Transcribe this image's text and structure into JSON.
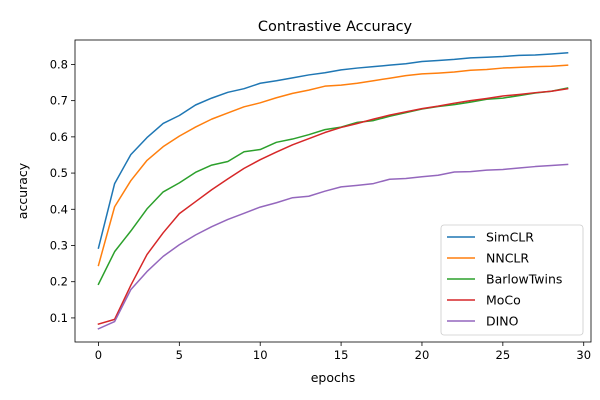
{
  "chart_data": {
    "type": "line",
    "title": "Contrastive Accuracy",
    "xlabel": "epochs",
    "ylabel": "accuracy",
    "xlim": [
      -1.45,
      30.45
    ],
    "ylim": [
      0.0335,
      0.8675
    ],
    "xticks": [
      0,
      5,
      10,
      15,
      20,
      25,
      30
    ],
    "yticks": [
      0.1,
      0.2,
      0.3,
      0.4,
      0.5,
      0.6,
      0.7,
      0.8
    ],
    "grid": false,
    "legend_position": "lower-right",
    "x": [
      0,
      1,
      2,
      3,
      4,
      5,
      6,
      7,
      8,
      9,
      10,
      11,
      12,
      13,
      14,
      15,
      16,
      17,
      18,
      19,
      20,
      21,
      22,
      23,
      24,
      25,
      26,
      27,
      28,
      29
    ],
    "series": [
      {
        "name": "SimCLR",
        "color": "#1f77b4",
        "values": [
          0.293,
          0.471,
          0.551,
          0.598,
          0.637,
          0.659,
          0.688,
          0.707,
          0.723,
          0.733,
          0.748,
          0.755,
          0.763,
          0.771,
          0.777,
          0.785,
          0.79,
          0.794,
          0.798,
          0.802,
          0.808,
          0.811,
          0.814,
          0.818,
          0.82,
          0.822,
          0.825,
          0.826,
          0.829,
          0.832
        ]
      },
      {
        "name": "NNCLR",
        "color": "#ff7f0e",
        "values": [
          0.245,
          0.407,
          0.479,
          0.535,
          0.573,
          0.602,
          0.627,
          0.649,
          0.666,
          0.683,
          0.694,
          0.708,
          0.72,
          0.729,
          0.74,
          0.743,
          0.748,
          0.755,
          0.762,
          0.769,
          0.774,
          0.776,
          0.779,
          0.784,
          0.786,
          0.79,
          0.792,
          0.794,
          0.795,
          0.798
        ]
      },
      {
        "name": "BarlowTwins",
        "color": "#2ca02c",
        "values": [
          0.193,
          0.283,
          0.34,
          0.401,
          0.448,
          0.473,
          0.502,
          0.522,
          0.532,
          0.559,
          0.565,
          0.585,
          0.594,
          0.606,
          0.62,
          0.627,
          0.64,
          0.645,
          0.657,
          0.667,
          0.677,
          0.684,
          0.689,
          0.696,
          0.704,
          0.707,
          0.714,
          0.721,
          0.726,
          0.735
        ]
      },
      {
        "name": "MoCo",
        "color": "#d62728",
        "values": [
          0.083,
          0.096,
          0.19,
          0.275,
          0.335,
          0.388,
          0.421,
          0.454,
          0.484,
          0.513,
          0.537,
          0.558,
          0.578,
          0.595,
          0.612,
          0.626,
          0.637,
          0.649,
          0.66,
          0.669,
          0.678,
          0.685,
          0.693,
          0.7,
          0.706,
          0.713,
          0.717,
          0.722,
          0.726,
          0.733
        ]
      },
      {
        "name": "DINO",
        "color": "#9467bd",
        "values": [
          0.07,
          0.09,
          0.178,
          0.228,
          0.27,
          0.302,
          0.329,
          0.352,
          0.372,
          0.389,
          0.406,
          0.418,
          0.432,
          0.436,
          0.45,
          0.462,
          0.466,
          0.471,
          0.483,
          0.485,
          0.49,
          0.494,
          0.503,
          0.504,
          0.508,
          0.51,
          0.514,
          0.518,
          0.521,
          0.524
        ]
      }
    ]
  }
}
